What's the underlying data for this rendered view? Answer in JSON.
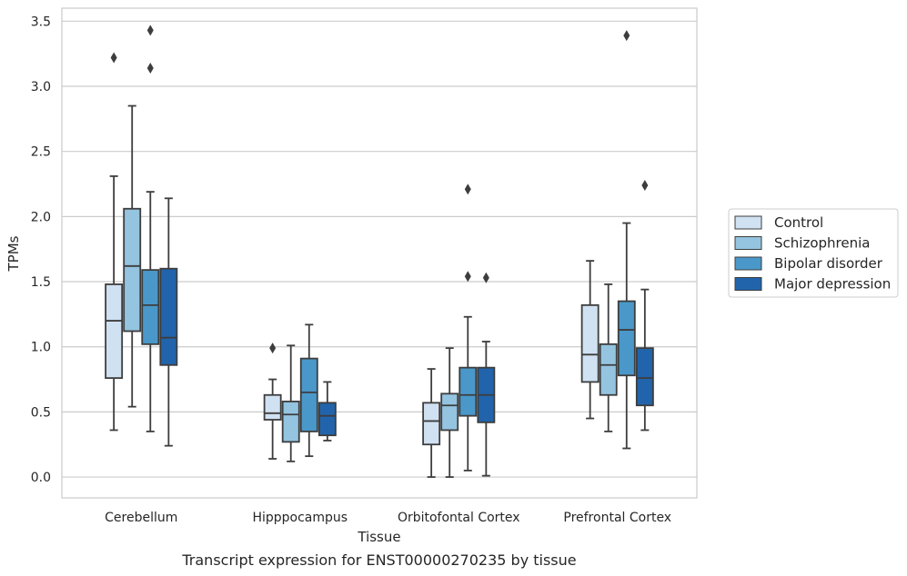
{
  "chart_data": {
    "type": "box",
    "title": "",
    "caption": "Transcript expression for ENST00000270235 by tissue",
    "xlabel": "Tissue",
    "ylabel": "TPMs",
    "ylim": [
      -0.16,
      3.6
    ],
    "yticks": [
      "0.0",
      "0.5",
      "1.0",
      "1.5",
      "2.0",
      "2.5",
      "3.0",
      "3.5"
    ],
    "ytick_values": [
      0,
      0.5,
      1.0,
      1.5,
      2.0,
      2.5,
      3.0,
      3.5
    ],
    "grid": true,
    "legend_position": "right",
    "categories": [
      "Cerebellum",
      "Hipppocampus",
      "Orbitofontal Cortex",
      "Prefrontal Cortex"
    ],
    "series": [
      {
        "name": "Control",
        "color": "#d0e1f2",
        "boxes": [
          {
            "whisker_low": 0.36,
            "q1": 0.76,
            "median": 1.2,
            "q3": 1.48,
            "whisker_high": 2.31,
            "outliers": [
              3.22
            ]
          },
          {
            "whisker_low": 0.14,
            "q1": 0.44,
            "median": 0.49,
            "q3": 0.63,
            "whisker_high": 0.75,
            "outliers": [
              0.99
            ]
          },
          {
            "whisker_low": 0.0,
            "q1": 0.25,
            "median": 0.43,
            "q3": 0.57,
            "whisker_high": 0.83,
            "outliers": []
          },
          {
            "whisker_low": 0.45,
            "q1": 0.73,
            "median": 0.94,
            "q3": 1.32,
            "whisker_high": 1.66,
            "outliers": []
          }
        ]
      },
      {
        "name": "Schizophrenia",
        "color": "#94c4df",
        "boxes": [
          {
            "whisker_low": 0.54,
            "q1": 1.12,
            "median": 1.62,
            "q3": 2.06,
            "whisker_high": 2.85,
            "outliers": []
          },
          {
            "whisker_low": 0.12,
            "q1": 0.27,
            "median": 0.48,
            "q3": 0.58,
            "whisker_high": 1.01,
            "outliers": []
          },
          {
            "whisker_low": 0.0,
            "q1": 0.36,
            "median": 0.55,
            "q3": 0.64,
            "whisker_high": 0.99,
            "outliers": []
          },
          {
            "whisker_low": 0.35,
            "q1": 0.63,
            "median": 0.86,
            "q3": 1.02,
            "whisker_high": 1.48,
            "outliers": []
          }
        ]
      },
      {
        "name": "Bipolar disorder",
        "color": "#4a98c9",
        "boxes": [
          {
            "whisker_low": 0.35,
            "q1": 1.02,
            "median": 1.32,
            "q3": 1.59,
            "whisker_high": 2.19,
            "outliers": [
              3.14,
              3.43
            ]
          },
          {
            "whisker_low": 0.16,
            "q1": 0.35,
            "median": 0.65,
            "q3": 0.91,
            "whisker_high": 1.17,
            "outliers": []
          },
          {
            "whisker_low": 0.05,
            "q1": 0.47,
            "median": 0.63,
            "q3": 0.84,
            "whisker_high": 1.23,
            "outliers": [
              1.54,
              2.21
            ]
          },
          {
            "whisker_low": 0.22,
            "q1": 0.78,
            "median": 1.13,
            "q3": 1.35,
            "whisker_high": 1.95,
            "outliers": [
              3.39
            ]
          }
        ]
      },
      {
        "name": "Major depression",
        "color": "#2164ab",
        "boxes": [
          {
            "whisker_low": 0.24,
            "q1": 0.86,
            "median": 1.07,
            "q3": 1.6,
            "whisker_high": 2.14,
            "outliers": []
          },
          {
            "whisker_low": 0.28,
            "q1": 0.32,
            "median": 0.47,
            "q3": 0.57,
            "whisker_high": 0.73,
            "outliers": []
          },
          {
            "whisker_low": 0.01,
            "q1": 0.42,
            "median": 0.63,
            "q3": 0.84,
            "whisker_high": 1.04,
            "outliers": [
              1.53
            ]
          },
          {
            "whisker_low": 0.36,
            "q1": 0.55,
            "median": 0.76,
            "q3": 0.99,
            "whisker_high": 1.44,
            "outliers": [
              2.24
            ]
          }
        ]
      }
    ]
  }
}
